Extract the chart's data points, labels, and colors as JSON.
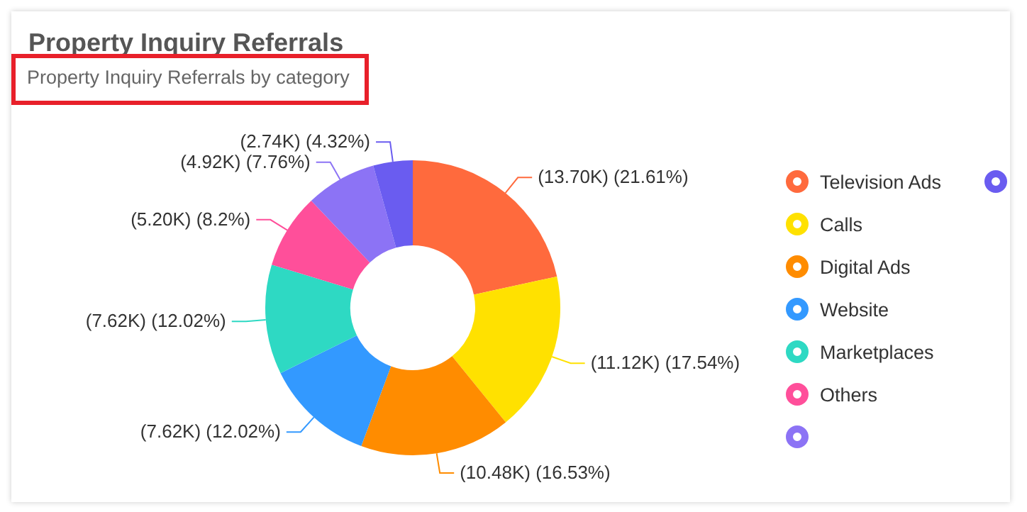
{
  "chart_data": {
    "type": "donut",
    "title": "Property Inquiry Referrals",
    "subtitle": "Property Inquiry Referrals by category",
    "categories": [
      "Television Ads",
      "Calls",
      "Digital Ads",
      "Website",
      "Marketplaces",
      "Others",
      null,
      null
    ],
    "values": [
      13700,
      11120,
      10480,
      7620,
      7620,
      5200,
      4920,
      2740
    ],
    "value_labels": [
      "(13.70K) (21.61%)",
      "(11.12K) (17.54%)",
      "(10.48K) (16.53%)",
      "(7.62K) (12.02%)",
      "(7.62K) (12.02%)",
      "(5.20K) (8.2%)",
      "(4.92K) (7.76%)",
      "(2.74K) (4.32%)"
    ],
    "colors": [
      "#ff6a3d",
      "#ffe100",
      "#ff8c00",
      "#3399ff",
      "#2ed9c3",
      "#ff4f9a",
      "#8c73f5",
      "#6a5cf0"
    ],
    "legend": "right"
  }
}
